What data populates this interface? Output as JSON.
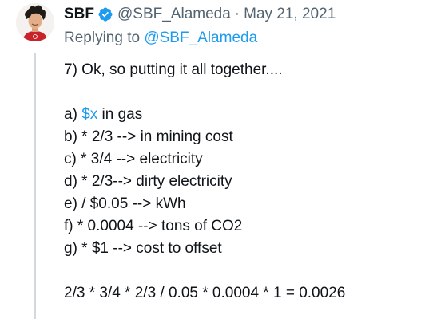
{
  "author": {
    "name": "SBF",
    "handle": "@SBF_Alameda",
    "separator": "·",
    "date": "May 21, 2021",
    "avatar_icon": "avatar-photo-icon",
    "verified_icon": "verified-badge-icon"
  },
  "reply": {
    "prefix": "Replying to",
    "handle": "@SBF_Alameda"
  },
  "body": {
    "intro": "7) Ok, so putting it all together....",
    "item_a_prefix": "a) ",
    "item_a_cashtag": "$x",
    "item_a_suffix": " in gas",
    "items": [
      "b) * 2/3 --> in mining cost",
      "c) * 3/4 --> electricity",
      "d) * 2/3--> dirty electricity",
      "e) / $0.05 --> kWh",
      "f) * 0.0004 --> tons of CO2",
      "g) * $1 --> cost to offset"
    ],
    "formula": "2/3 * 3/4 * 2/3 / 0.05 * 0.0004 * 1 = 0.0026"
  },
  "colors": {
    "link": "#1d9bf0",
    "text": "#0f1419",
    "secondary": "#536471",
    "thread_line": "#cfd9de"
  }
}
